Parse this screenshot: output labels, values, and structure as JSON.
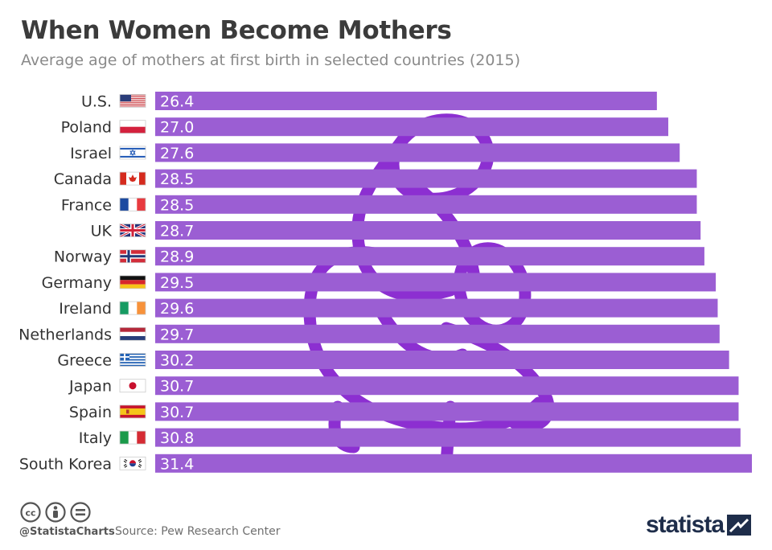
{
  "title": "When Women Become Mothers",
  "subtitle": "Average age of mothers at first birth in selected countries (2015)",
  "footer": {
    "handle": "@StatistaCharts",
    "source": "Source: Pew Research Center",
    "logo": "statista",
    "license_icons": [
      "cc-icon",
      "by-icon",
      "nd-icon"
    ]
  },
  "colors": {
    "bar": "#9b5ed3",
    "watermark": "#8c2fd1",
    "logo": "#1e2d4a"
  },
  "watermark_icon": "mother-and-baby-icon",
  "chart_data": {
    "type": "bar",
    "orientation": "horizontal",
    "title": "When Women Become Mothers",
    "xlabel": "",
    "ylabel": "",
    "grid": false,
    "categories": [
      "U.S.",
      "Poland",
      "Israel",
      "Canada",
      "France",
      "UK",
      "Norway",
      "Germany",
      "Ireland",
      "Netherlands",
      "Greece",
      "Japan",
      "Spain",
      "Italy",
      "South Korea"
    ],
    "flags": [
      "us-flag-icon",
      "poland-flag-icon",
      "israel-flag-icon",
      "canada-flag-icon",
      "france-flag-icon",
      "uk-flag-icon",
      "norway-flag-icon",
      "germany-flag-icon",
      "ireland-flag-icon",
      "netherlands-flag-icon",
      "greece-flag-icon",
      "japan-flag-icon",
      "spain-flag-icon",
      "italy-flag-icon",
      "south-korea-flag-icon"
    ],
    "values": [
      26.4,
      27.0,
      27.6,
      28.5,
      28.5,
      28.7,
      28.9,
      29.5,
      29.6,
      29.7,
      30.2,
      30.7,
      30.7,
      30.8,
      31.4
    ],
    "labels": [
      "26.4",
      "27.0",
      "27.6",
      "28.5",
      "28.5",
      "28.7",
      "28.9",
      "29.5",
      "29.6",
      "29.7",
      "30.2",
      "30.7",
      "30.7",
      "30.8",
      "31.4"
    ],
    "xlim": [
      0,
      31.4
    ]
  }
}
